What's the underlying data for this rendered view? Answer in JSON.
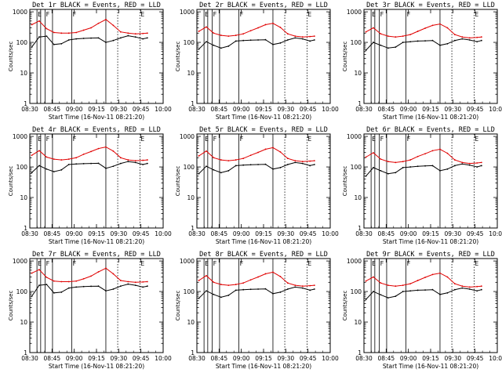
{
  "colors": {
    "events": "#000000",
    "lld": "#e00000",
    "axes": "#000000",
    "background": "#ffffff"
  },
  "shared": {
    "ylabel": "Counts/sec",
    "xlabel": "Start Time (16-Nov-11 08:21:20)",
    "xtick_labels": [
      "08:30",
      "08:45",
      "09:00",
      "09:15",
      "09:30",
      "09:45",
      "10:00"
    ],
    "ytick_labels": [
      "1",
      "10",
      "100",
      "1000"
    ],
    "yscale": "log",
    "ylim": [
      1,
      1200
    ],
    "xlim_minutes": [
      8.67,
      98.67
    ]
  },
  "chart_data": [
    {
      "type": "line",
      "title": "Det 1r  BLACK = Events, RED = LLD",
      "x": [
        10,
        15,
        20,
        25,
        30,
        35,
        40,
        45,
        50,
        55,
        60,
        65,
        70,
        75,
        80,
        85,
        88
      ],
      "series": [
        {
          "name": "BLACK = Events",
          "values": [
            70,
            150,
            160,
            85,
            90,
            120,
            130,
            135,
            138,
            140,
            100,
            115,
            140,
            165,
            150,
            130,
            140
          ]
        },
        {
          "name": "RED = LLD",
          "values": [
            380,
            500,
            280,
            210,
            200,
            200,
            210,
            250,
            300,
            420,
            560,
            360,
            220,
            200,
            190,
            195,
            200
          ]
        }
      ],
      "vlines_solid": [
        13.5,
        16,
        19,
        24,
        37,
        60
      ],
      "vlines_dotted": [
        68,
        83
      ],
      "flag_labels": [
        {
          "x": 13.5,
          "text": "E"
        },
        {
          "x": 19,
          "text": "F"
        },
        {
          "x": 37,
          "text": "F"
        },
        {
          "x": 83,
          "text": "E"
        }
      ]
    },
    {
      "type": "line",
      "title": "Det 2r  BLACK = Events, RED = LLD",
      "x": [
        10,
        15,
        20,
        25,
        30,
        35,
        40,
        45,
        50,
        55,
        60,
        65,
        70,
        75,
        80,
        85,
        88
      ],
      "series": [
        {
          "name": "BLACK = Events",
          "values": [
            60,
            105,
            80,
            65,
            75,
            110,
            115,
            118,
            120,
            122,
            85,
            95,
            120,
            140,
            130,
            110,
            120
          ]
        },
        {
          "name": "RED = LLD",
          "values": [
            230,
            320,
            200,
            170,
            160,
            170,
            190,
            240,
            300,
            380,
            420,
            310,
            190,
            160,
            150,
            155,
            160
          ]
        }
      ],
      "vlines_solid": [
        13.5,
        16,
        19,
        24,
        37,
        60
      ],
      "vlines_dotted": [
        68,
        83
      ],
      "flag_labels": [
        {
          "x": 13.5,
          "text": "E"
        },
        {
          "x": 19,
          "text": "F"
        },
        {
          "x": 37,
          "text": "F"
        },
        {
          "x": 83,
          "text": "E"
        }
      ]
    },
    {
      "type": "line",
      "title": "Det 3r  BLACK = Events, RED = LLD",
      "x": [
        10,
        15,
        20,
        25,
        30,
        35,
        40,
        45,
        50,
        55,
        60,
        65,
        70,
        75,
        80,
        85,
        88
      ],
      "series": [
        {
          "name": "BLACK = Events",
          "values": [
            55,
            100,
            80,
            65,
            70,
            100,
            105,
            110,
            112,
            115,
            80,
            90,
            115,
            130,
            120,
            105,
            115
          ]
        },
        {
          "name": "RED = LLD",
          "values": [
            220,
            300,
            190,
            160,
            150,
            160,
            180,
            230,
            290,
            360,
            400,
            300,
            180,
            150,
            140,
            145,
            150
          ]
        }
      ],
      "vlines_solid": [
        13.5,
        16,
        19,
        24,
        37,
        60
      ],
      "vlines_dotted": [
        68,
        83
      ],
      "flag_labels": [
        {
          "x": 13.5,
          "text": "E"
        },
        {
          "x": 19,
          "text": "F"
        },
        {
          "x": 37,
          "text": "F"
        },
        {
          "x": 83,
          "text": "E"
        }
      ]
    },
    {
      "type": "line",
      "title": "Det 4r  BLACK = Events, RED = LLD",
      "x": [
        10,
        15,
        20,
        25,
        30,
        35,
        40,
        45,
        50,
        55,
        60,
        65,
        70,
        75,
        80,
        85,
        88
      ],
      "series": [
        {
          "name": "BLACK = Events",
          "values": [
            65,
            110,
            85,
            70,
            80,
            120,
            125,
            128,
            130,
            132,
            90,
            105,
            130,
            150,
            140,
            120,
            130
          ]
        },
        {
          "name": "RED = LLD",
          "values": [
            240,
            340,
            210,
            180,
            170,
            180,
            200,
            260,
            320,
            400,
            450,
            330,
            200,
            170,
            160,
            165,
            170
          ]
        }
      ],
      "vlines_solid": [
        13.5,
        16,
        19,
        24,
        37,
        60
      ],
      "vlines_dotted": [
        68,
        83
      ],
      "flag_labels": [
        {
          "x": 13.5,
          "text": "E"
        },
        {
          "x": 19,
          "text": "F"
        },
        {
          "x": 37,
          "text": "F"
        },
        {
          "x": 83,
          "text": "E"
        }
      ]
    },
    {
      "type": "line",
      "title": "Det 5r  BLACK = Events, RED = LLD",
      "x": [
        10,
        15,
        20,
        25,
        30,
        35,
        40,
        45,
        50,
        55,
        60,
        65,
        70,
        75,
        80,
        85,
        88
      ],
      "series": [
        {
          "name": "BLACK = Events",
          "values": [
            60,
            105,
            80,
            65,
            75,
            110,
            115,
            118,
            120,
            122,
            85,
            95,
            120,
            140,
            130,
            110,
            120
          ]
        },
        {
          "name": "RED = LLD",
          "values": [
            230,
            330,
            200,
            170,
            160,
            170,
            190,
            240,
            300,
            380,
            430,
            310,
            190,
            160,
            150,
            155,
            160
          ]
        }
      ],
      "vlines_solid": [
        13.5,
        16,
        19,
        24,
        37,
        60
      ],
      "vlines_dotted": [
        68,
        83
      ],
      "flag_labels": [
        {
          "x": 13.5,
          "text": "E"
        },
        {
          "x": 19,
          "text": "F"
        },
        {
          "x": 37,
          "text": "F"
        },
        {
          "x": 83,
          "text": "E"
        }
      ]
    },
    {
      "type": "line",
      "title": "Det 6r  BLACK = Events, RED = LLD",
      "x": [
        10,
        15,
        20,
        25,
        30,
        35,
        40,
        45,
        50,
        55,
        60,
        65,
        70,
        75,
        80,
        85,
        88
      ],
      "series": [
        {
          "name": "BLACK = Events",
          "values": [
            50,
            95,
            75,
            60,
            65,
            95,
            100,
            105,
            108,
            110,
            75,
            85,
            110,
            125,
            115,
            100,
            110
          ]
        },
        {
          "name": "RED = LLD",
          "values": [
            210,
            290,
            180,
            150,
            140,
            150,
            170,
            220,
            270,
            340,
            380,
            280,
            170,
            140,
            130,
            135,
            140
          ]
        }
      ],
      "vlines_solid": [
        13.5,
        16,
        19,
        24,
        37,
        60
      ],
      "vlines_dotted": [
        68,
        83
      ],
      "flag_labels": [
        {
          "x": 13.5,
          "text": "E"
        },
        {
          "x": 19,
          "text": "F"
        },
        {
          "x": 37,
          "text": "F"
        },
        {
          "x": 83,
          "text": "E"
        }
      ]
    },
    {
      "type": "line",
      "title": "Det 7r  BLACK = Events, RED = LLD",
      "x": [
        10,
        15,
        20,
        25,
        30,
        35,
        40,
        45,
        50,
        55,
        60,
        65,
        70,
        75,
        80,
        85,
        88
      ],
      "series": [
        {
          "name": "BLACK = Events",
          "values": [
            70,
            160,
            170,
            90,
            95,
            130,
            140,
            145,
            148,
            150,
            105,
            120,
            150,
            175,
            160,
            140,
            150
          ]
        },
        {
          "name": "RED = LLD",
          "values": [
            400,
            520,
            290,
            220,
            210,
            210,
            220,
            260,
            320,
            440,
            580,
            380,
            230,
            210,
            200,
            205,
            210
          ]
        }
      ],
      "vlines_solid": [
        13.5,
        16,
        19,
        24,
        37,
        60
      ],
      "vlines_dotted": [
        68,
        83
      ],
      "flag_labels": [
        {
          "x": 13.5,
          "text": "E"
        },
        {
          "x": 19,
          "text": "F"
        },
        {
          "x": 37,
          "text": "F"
        },
        {
          "x": 83,
          "text": "E"
        }
      ]
    },
    {
      "type": "line",
      "title": "Det 8r  BLACK = Events, RED = LLD",
      "x": [
        10,
        15,
        20,
        25,
        30,
        35,
        40,
        45,
        50,
        55,
        60,
        65,
        70,
        75,
        80,
        85,
        88
      ],
      "series": [
        {
          "name": "BLACK = Events",
          "values": [
            60,
            105,
            80,
            65,
            75,
            110,
            115,
            118,
            120,
            122,
            85,
            95,
            120,
            140,
            130,
            110,
            120
          ]
        },
        {
          "name": "RED = LLD",
          "values": [
            230,
            330,
            200,
            170,
            160,
            170,
            190,
            240,
            300,
            380,
            430,
            310,
            190,
            160,
            150,
            155,
            160
          ]
        }
      ],
      "vlines_solid": [
        13.5,
        16,
        19,
        24,
        37,
        60
      ],
      "vlines_dotted": [
        68,
        83
      ],
      "flag_labels": [
        {
          "x": 13.5,
          "text": "E"
        },
        {
          "x": 19,
          "text": "F"
        },
        {
          "x": 37,
          "text": "F"
        },
        {
          "x": 83,
          "text": "E"
        }
      ]
    },
    {
      "type": "line",
      "title": "Det 9r  BLACK = Events, RED = LLD",
      "x": [
        10,
        15,
        20,
        25,
        30,
        35,
        40,
        45,
        50,
        55,
        60,
        65,
        70,
        75,
        80,
        85,
        88
      ],
      "series": [
        {
          "name": "BLACK = Events",
          "values": [
            55,
            100,
            78,
            62,
            70,
            100,
            105,
            110,
            112,
            115,
            80,
            90,
            115,
            130,
            120,
            105,
            115
          ]
        },
        {
          "name": "RED = LLD",
          "values": [
            220,
            300,
            190,
            160,
            150,
            160,
            180,
            230,
            290,
            360,
            400,
            300,
            180,
            150,
            140,
            145,
            150
          ]
        }
      ],
      "vlines_solid": [
        13.5,
        16,
        19,
        24,
        37,
        60
      ],
      "vlines_dotted": [
        68,
        83
      ],
      "flag_labels": [
        {
          "x": 13.5,
          "text": "E"
        },
        {
          "x": 19,
          "text": "F"
        },
        {
          "x": 37,
          "text": "F"
        },
        {
          "x": 83,
          "text": "E"
        }
      ]
    }
  ]
}
